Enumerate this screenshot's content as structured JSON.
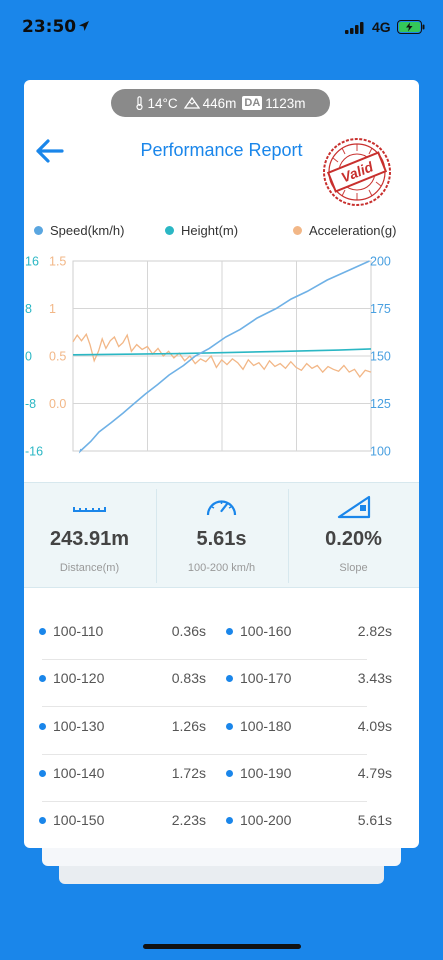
{
  "status_bar": {
    "time": "23:50",
    "network": "4G"
  },
  "environment": {
    "temperature": "14°C",
    "altitude": "446m",
    "da_label": "DA",
    "density_altitude": "1123m"
  },
  "header": {
    "title": "Performance Report",
    "stamp_text": "Valid"
  },
  "colors": {
    "accent": "#1a86ea",
    "speed": "#5aa6e0",
    "height": "#2bb7c4",
    "acceleration": "#f2b787",
    "stamp": "#c8302e"
  },
  "chart_data": {
    "type": "line",
    "legend": [
      "Speed(km/h)",
      "Height(m)",
      "Acceleration(g)"
    ],
    "left_axis_height_ticks": [
      "16",
      "8",
      "0",
      "-8",
      "-16"
    ],
    "left_axis_accel_ticks": [
      "1.5",
      "1",
      "0.5",
      "0.0"
    ],
    "right_axis_speed_ticks": [
      "200",
      "175",
      "150",
      "125",
      "100"
    ],
    "x_range": [
      0,
      5.61
    ],
    "speed_range": [
      100,
      200
    ],
    "height_range": [
      -16,
      16
    ],
    "accel_range": [
      -0.5,
      1.5
    ],
    "series": [
      {
        "name": "Speed(km/h)",
        "x": [
          0,
          0.2,
          0.36,
          0.6,
          0.83,
          1.0,
          1.26,
          1.5,
          1.72,
          2.0,
          2.23,
          2.5,
          2.82,
          3.1,
          3.43,
          3.8,
          4.09,
          4.4,
          4.79,
          5.2,
          5.61
        ],
        "y": [
          100,
          105,
          110,
          115,
          120,
          124,
          130,
          135,
          140,
          145,
          150,
          154,
          160,
          164,
          170,
          175,
          180,
          184,
          190,
          195,
          200
        ]
      },
      {
        "name": "Height(m)",
        "x": [
          0,
          1.0,
          2.0,
          3.0,
          4.0,
          5.0,
          5.61
        ],
        "y": [
          0.2,
          0.3,
          0.4,
          0.6,
          0.8,
          1.0,
          1.2
        ]
      },
      {
        "name": "Acceleration(g)",
        "x": [
          0,
          0.08,
          0.16,
          0.25,
          0.32,
          0.4,
          0.48,
          0.55,
          0.62,
          0.7,
          0.78,
          0.86,
          0.94,
          1.02,
          1.1,
          1.2,
          1.3,
          1.4,
          1.5,
          1.6,
          1.7,
          1.8,
          1.9,
          2.0,
          2.1,
          2.2,
          2.3,
          2.4,
          2.5,
          2.6,
          2.7,
          2.8,
          2.9,
          3.0,
          3.1,
          3.2,
          3.3,
          3.4,
          3.5,
          3.6,
          3.7,
          3.8,
          3.9,
          4.0,
          4.1,
          4.2,
          4.3,
          4.4,
          4.5,
          4.6,
          4.7,
          4.8,
          4.9,
          5.0,
          5.1,
          5.2,
          5.3,
          5.4,
          5.5,
          5.61
        ],
        "y": [
          0.65,
          0.72,
          0.66,
          0.73,
          0.62,
          0.45,
          0.55,
          0.68,
          0.58,
          0.66,
          0.7,
          0.6,
          0.64,
          0.72,
          0.55,
          0.62,
          0.57,
          0.6,
          0.52,
          0.58,
          0.5,
          0.55,
          0.48,
          0.53,
          0.45,
          0.5,
          0.42,
          0.47,
          0.44,
          0.5,
          0.38,
          0.46,
          0.41,
          0.47,
          0.43,
          0.36,
          0.46,
          0.4,
          0.43,
          0.36,
          0.45,
          0.39,
          0.42,
          0.37,
          0.44,
          0.38,
          0.35,
          0.42,
          0.37,
          0.4,
          0.33,
          0.39,
          0.36,
          0.34,
          0.4,
          0.33,
          0.36,
          0.28,
          0.35,
          0.33
        ]
      }
    ]
  },
  "stats": [
    {
      "value": "243.91m",
      "label": "Distance(m)"
    },
    {
      "value": "5.61s",
      "label": "100-200 km/h"
    },
    {
      "value": "0.20%",
      "label": "Slope"
    }
  ],
  "splits": [
    {
      "left_range": "100-110",
      "left_time": "0.36s",
      "right_range": "100-160",
      "right_time": "2.82s"
    },
    {
      "left_range": "100-120",
      "left_time": "0.83s",
      "right_range": "100-170",
      "right_time": "3.43s"
    },
    {
      "left_range": "100-130",
      "left_time": "1.26s",
      "right_range": "100-180",
      "right_time": "4.09s"
    },
    {
      "left_range": "100-140",
      "left_time": "1.72s",
      "right_range": "100-190",
      "right_time": "4.79s"
    },
    {
      "left_range": "100-150",
      "left_time": "2.23s",
      "right_range": "100-200",
      "right_time": "5.61s"
    }
  ]
}
